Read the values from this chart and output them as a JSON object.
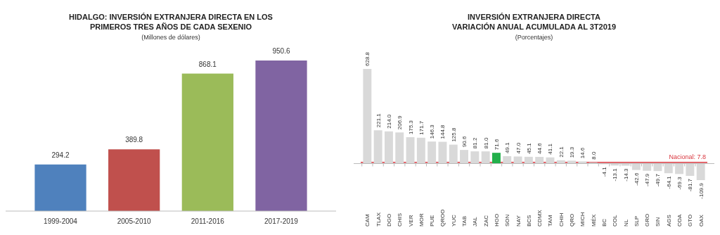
{
  "chart_data": [
    {
      "type": "bar",
      "title": "HIDALGO: INVERSIÓN EXTRANJERA DIRECTA EN LOS PRIMEROS TRES AÑOS DE CADA SEXENIO",
      "subtitle": "(Millones de dólares)",
      "categories": [
        "1999-2004",
        "2005-2010",
        "2011-2016",
        "2017-2019"
      ],
      "values": [
        294.2,
        389.8,
        868.1,
        950.6
      ],
      "colors": [
        "#4f81bd",
        "#c0504d",
        "#9bbb59",
        "#8064a2"
      ],
      "data_labels": true
    },
    {
      "type": "bar",
      "title": "INVERSIÓN EXTRANJERA DIRECTA VARIACIÓN ANUAL ACUMULADA AL 3T2019",
      "subtitle": "(Porcentajes)",
      "categories": [
        "CAM",
        "TLAX",
        "DGO",
        "CHIS",
        "VER",
        "MOR",
        "PUE",
        "QROO",
        "YUC",
        "TAB",
        "JAL",
        "ZAC",
        "HGO",
        "SON",
        "NAY",
        "BCS",
        "CDMX",
        "TAM",
        "CHIH",
        "QRO",
        "MICH",
        "MÉX",
        "BC",
        "COL",
        "NL",
        "SLP",
        "GRO",
        "SIN",
        "AGS",
        "COA",
        "GTO",
        "OAX"
      ],
      "values": [
        628.8,
        221.1,
        214.0,
        206.9,
        175.3,
        171.7,
        146.3,
        144.8,
        125.8,
        90.6,
        81.2,
        81.0,
        71.6,
        49.1,
        47.0,
        45.1,
        44.6,
        41.1,
        22.1,
        19.3,
        14.6,
        8.0,
        -4.1,
        -13.1,
        -14.3,
        -42.6,
        -47.9,
        -49.7,
        -64.1,
        -69.3,
        -81.7,
        -109.9
      ],
      "colors": [
        "#d9d9d9",
        "#d9d9d9",
        "#d9d9d9",
        "#d9d9d9",
        "#d9d9d9",
        "#d9d9d9",
        "#d9d9d9",
        "#d9d9d9",
        "#d9d9d9",
        "#d9d9d9",
        "#d9d9d9",
        "#d9d9d9",
        "#22b04b",
        "#d9d9d9",
        "#d9d9d9",
        "#d9d9d9",
        "#d9d9d9",
        "#d9d9d9",
        "#d9d9d9",
        "#d9d9d9",
        "#d9d9d9",
        "#d9d9d9",
        "#d9d9d9",
        "#d9d9d9",
        "#d9d9d9",
        "#d9d9d9",
        "#d9d9d9",
        "#d9d9d9",
        "#d9d9d9",
        "#d9d9d9",
        "#d9d9d9",
        "#d9d9d9"
      ],
      "value_labels": [
        "628.8",
        "221.1",
        "214.0",
        "206.9",
        "175.3",
        "171.7",
        "146.3",
        "144.8",
        "125.8",
        "90.6",
        "81.2",
        "81.0",
        "71.6",
        "49.1",
        "47.0",
        "45.1",
        "44.6",
        "41.1",
        "22.1",
        "19.3",
        "14.6",
        "8.0",
        "-4.1",
        "-13.1",
        "-14.3",
        "-42.6",
        "-47.9",
        "-49.7",
        "-64.1",
        "-69.3",
        "-81.7",
        "-109.9"
      ],
      "ref_lines": [
        {
          "axis": "y",
          "value": 7.8,
          "label": "Nacional: 7.8",
          "color": "#d9363e"
        }
      ]
    }
  ]
}
